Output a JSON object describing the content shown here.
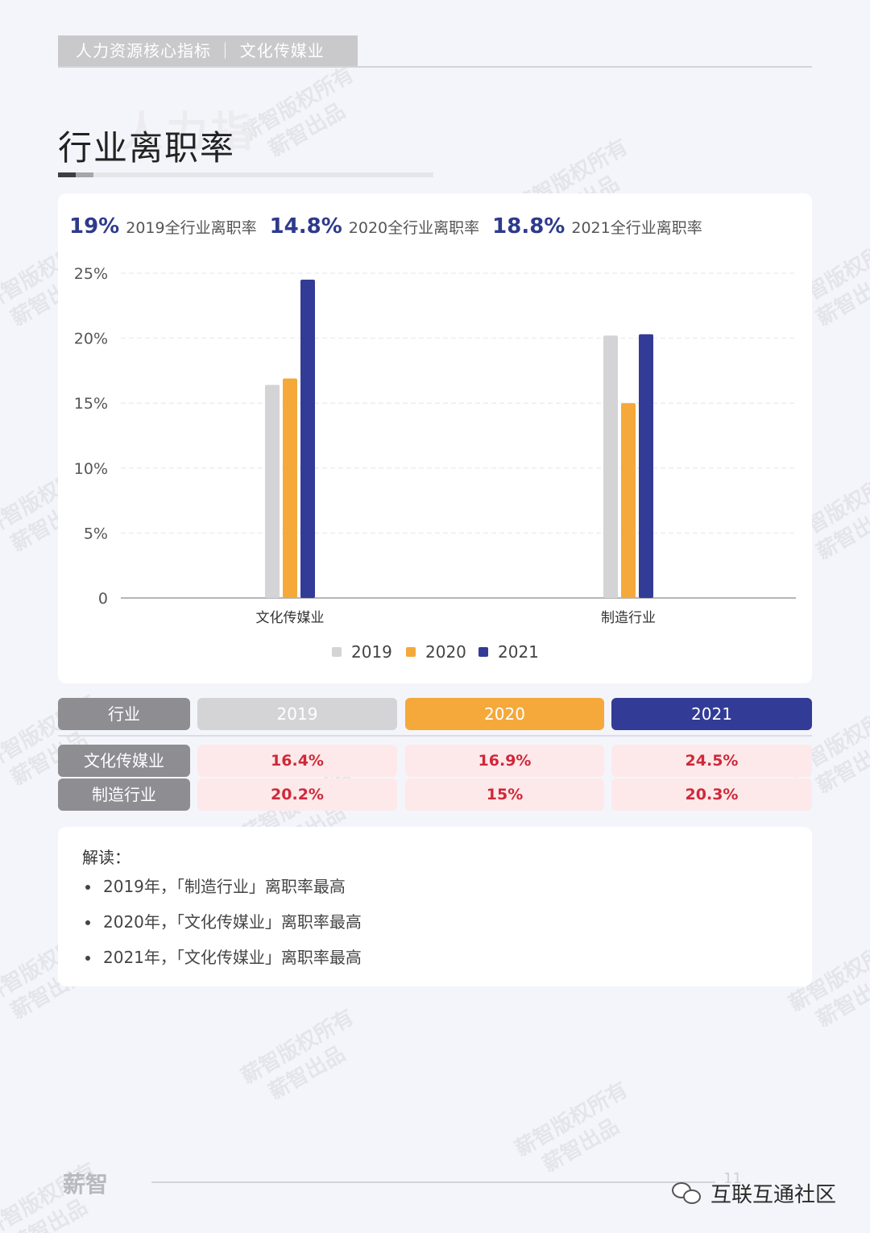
{
  "header": {
    "breadcrumb": "人力资源核心指标 ｜ 文化传媒业"
  },
  "page": {
    "ghost_title": "人力指",
    "title": "行业离职率"
  },
  "kpis": [
    {
      "value": "19%",
      "label": "2019全行业离职率"
    },
    {
      "value": "14.8%",
      "label": "2020全行业离职率"
    },
    {
      "value": "18.8%",
      "label": "2021全行业离职率"
    }
  ],
  "colors": {
    "2019": "#d4d4d7",
    "2020": "#f5a93a",
    "2021": "#323c96"
  },
  "chart_data": {
    "type": "bar",
    "categories": [
      "文化传媒业",
      "制造行业"
    ],
    "series": [
      {
        "name": "2019",
        "values": [
          16.4,
          20.2
        ]
      },
      {
        "name": "2020",
        "values": [
          16.9,
          15
        ]
      },
      {
        "name": "2021",
        "values": [
          24.5,
          20.3
        ]
      }
    ],
    "yticks": [
      "0",
      "5%",
      "10%",
      "15%",
      "20%",
      "25%"
    ],
    "ylim": [
      0,
      25
    ],
    "grid": true,
    "legend": "bottom"
  },
  "table": {
    "headers": [
      "行业",
      "2019",
      "2020",
      "2021"
    ],
    "rows": [
      {
        "label": "文化传媒业",
        "values": [
          "16.4%",
          "16.9%",
          "24.5%"
        ]
      },
      {
        "label": "制造行业",
        "values": [
          "20.2%",
          "15%",
          "20.3%"
        ]
      }
    ]
  },
  "reading": {
    "title": "解读：",
    "items": [
      "2019年，「制造行业」离职率最高",
      "2020年，「文化传媒业」离职率最高",
      "2021年，「文化传媒业」离职率最高"
    ]
  },
  "footer": {
    "logo": "薪智",
    "page_number": "11",
    "social": "互联互通社区"
  },
  "watermark": {
    "line1": "薪智版权所有",
    "line2": "薪智出品"
  }
}
